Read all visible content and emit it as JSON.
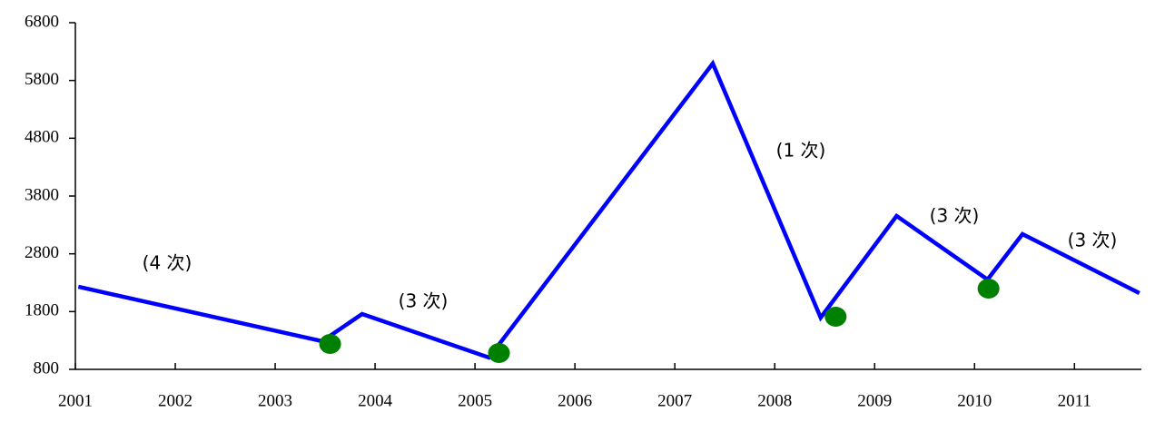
{
  "chart_data": {
    "type": "line",
    "xlim": [
      2001,
      2011.67
    ],
    "xticks": [
      2001,
      2002,
      2003,
      2004,
      2005,
      2006,
      2007,
      2008,
      2009,
      2010,
      2011
    ],
    "ylim": [
      800,
      6800
    ],
    "yticks": [
      800,
      1800,
      2800,
      3800,
      4800,
      5800,
      6800
    ],
    "grid": false,
    "series": [
      {
        "type": "line",
        "color": "#0000ff",
        "x": [
          2001.03,
          2003.47,
          2003.87,
          2005.14,
          2007.38,
          2008.46,
          2009.22,
          2010.13,
          2010.48,
          2011.65
        ],
        "values": [
          2230,
          1287,
          1758,
          1004,
          6094,
          1695,
          3455,
          2355,
          3141,
          2120
        ]
      },
      {
        "type": "scatter",
        "color": "#008000",
        "x": [
          2003.55,
          2005.24,
          2008.61,
          2010.14
        ],
        "values": [
          1240,
          1083,
          1711,
          2198
        ]
      }
    ],
    "annotations": [
      "(4 次)",
      "(3 次)",
      "(1 次)",
      "(3 次)",
      "(3 次)"
    ]
  }
}
